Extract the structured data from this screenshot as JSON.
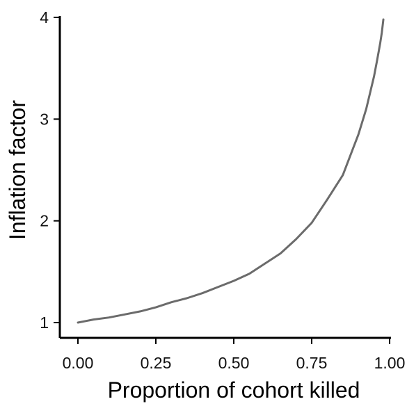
{
  "chart_data": {
    "type": "line",
    "title": "",
    "xlabel": "Proportion of cohort killed",
    "ylabel": "Inflation factor",
    "xlim": [
      0.0,
      1.0
    ],
    "ylim": [
      1.0,
      4.0
    ],
    "x_ticks": [
      0.0,
      0.25,
      0.5,
      0.75,
      1.0
    ],
    "x_tick_labels": [
      "0.00",
      "0.25",
      "0.50",
      "0.75",
      "1.00"
    ],
    "y_ticks": [
      1,
      2,
      3,
      4
    ],
    "y_tick_labels": [
      "1",
      "2",
      "3",
      "4"
    ],
    "grid": false,
    "legend": "none",
    "series": [
      {
        "color": "#6b6b6b",
        "x": [
          0.0,
          0.05,
          0.1,
          0.15,
          0.2,
          0.25,
          0.3,
          0.35,
          0.4,
          0.45,
          0.5,
          0.55,
          0.6,
          0.65,
          0.7,
          0.75,
          0.8,
          0.85,
          0.9,
          0.925,
          0.95,
          0.96,
          0.97,
          0.975,
          0.98
        ],
        "y": [
          1.0,
          1.03,
          1.05,
          1.08,
          1.11,
          1.15,
          1.2,
          1.24,
          1.29,
          1.35,
          1.41,
          1.48,
          1.58,
          1.68,
          1.82,
          1.98,
          2.21,
          2.45,
          2.85,
          3.1,
          3.42,
          3.58,
          3.75,
          3.85,
          3.98
        ]
      }
    ]
  }
}
